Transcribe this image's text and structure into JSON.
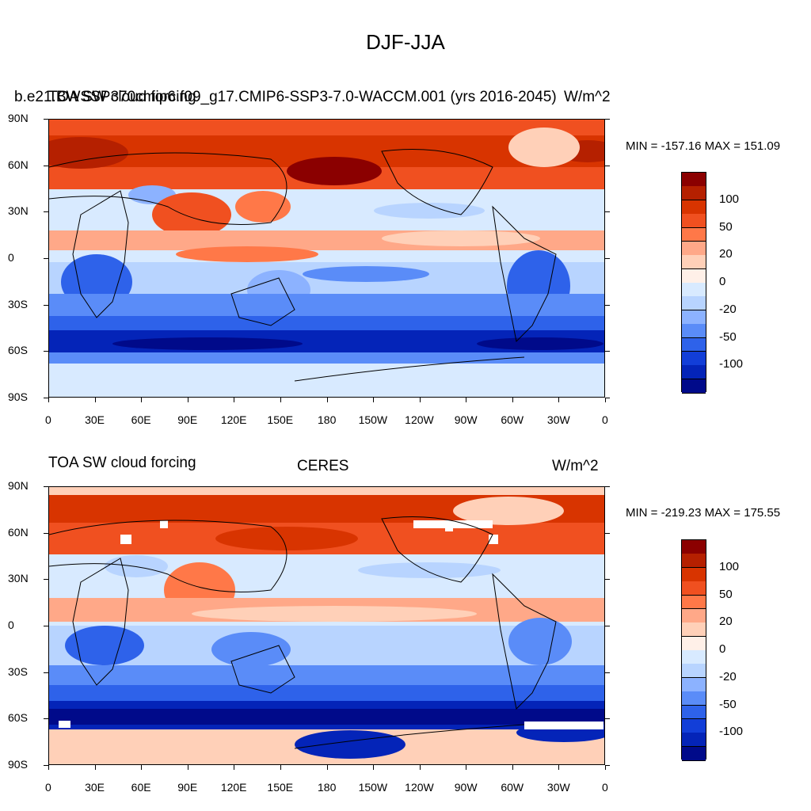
{
  "main_title": "DJF-JJA",
  "panels": [
    {
      "title_left": "TOA SW cloud forcing",
      "title_left_overlap": "b.e21.BWSSP370cmip6.f09_g17.CMIP6-SSP3-7.0-WACCM.001 (yrs 2016-2045)",
      "title_center": "",
      "title_right": "W/m^2",
      "minmax": "MIN = -157.16 MAX = 151.09"
    },
    {
      "title_left": "TOA SW cloud forcing",
      "title_left_overlap": "",
      "title_center": "CERES",
      "title_right": "W/m^2",
      "minmax": "MIN = -219.23 MAX = 175.55"
    }
  ],
  "lat_labels": [
    "90N",
    "60N",
    "30N",
    "0",
    "30S",
    "60S",
    "90S"
  ],
  "lon_labels": [
    "0",
    "30E",
    "60E",
    "90E",
    "120E",
    "150E",
    "180",
    "150W",
    "120W",
    "90W",
    "60W",
    "30W",
    "0"
  ],
  "colorbar": {
    "colors": [
      "#8b0000",
      "#b52000",
      "#d83400",
      "#f05020",
      "#ff7848",
      "#ffa888",
      "#ffd0b8",
      "#fff0e8",
      "#d8eaff",
      "#b8d4ff",
      "#8cb2ff",
      "#5a8cf8",
      "#2e62ea",
      "#123ed8",
      "#0424b8",
      "#000a8a"
    ],
    "labels": [
      "100",
      "50",
      "20",
      "0",
      "-20",
      "-50",
      "-100"
    ]
  }
}
